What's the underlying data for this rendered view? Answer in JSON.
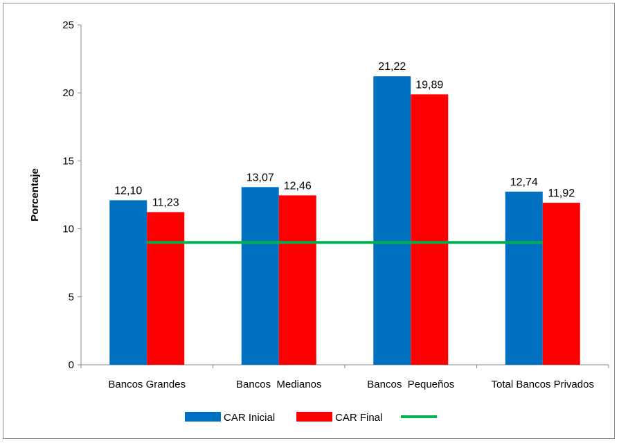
{
  "chart_data": {
    "type": "bar",
    "ylabel": "Porcentaje",
    "ylim": [
      0,
      25
    ],
    "yticks": [
      0,
      5,
      10,
      15,
      20,
      25
    ],
    "grid": false,
    "legend_position": "bottom",
    "categories": [
      "Bancos Grandes",
      "Bancos  Medianos",
      "Bancos  Pequeños",
      "Total Bancos Privados"
    ],
    "series": [
      {
        "name": "CAR Inicial",
        "color": "#0070C0",
        "values": [
          12.1,
          13.07,
          21.22,
          12.74
        ],
        "labels": [
          "12,10",
          "13,07",
          "21,22",
          "12,74"
        ]
      },
      {
        "name": "CAR Final",
        "color": "#FF0000",
        "values": [
          11.23,
          12.46,
          19.89,
          11.92
        ],
        "labels": [
          "11,23",
          "12,46",
          "19,89",
          "11,92"
        ]
      }
    ],
    "reference_line": {
      "name": "",
      "color": "#00B050",
      "value": 9
    }
  }
}
